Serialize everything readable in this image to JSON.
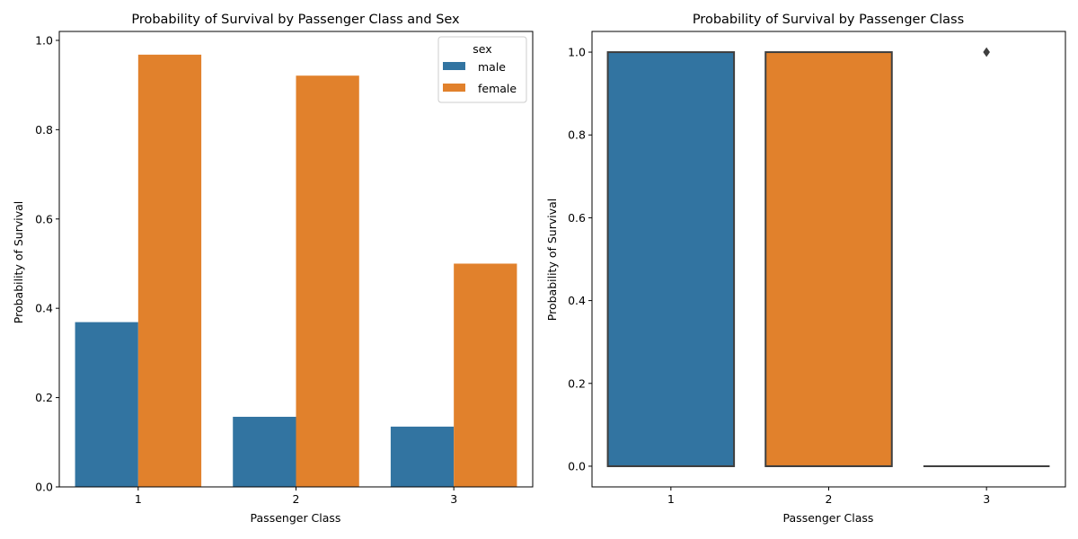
{
  "chart_data": [
    {
      "type": "bar",
      "title": "Probability of Survival by Passenger Class and Sex",
      "xlabel": "Passenger Class",
      "ylabel": "Probability of Survival",
      "categories": [
        "1",
        "2",
        "3"
      ],
      "series": [
        {
          "name": "male",
          "values": [
            0.369,
            0.157,
            0.135
          ]
        },
        {
          "name": "female",
          "values": [
            0.968,
            0.921,
            0.5
          ]
        }
      ],
      "ylim": [
        0,
        1.02
      ],
      "yticks": [
        0.0,
        0.2,
        0.4,
        0.6,
        0.8,
        1.0
      ],
      "ytick_labels": [
        "0.0",
        "0.2",
        "0.4",
        "0.6",
        "0.8",
        "1.0"
      ],
      "legend": {
        "title": "sex",
        "placement": "top-right",
        "entries": [
          "male",
          "female"
        ]
      },
      "grid": false
    },
    {
      "type": "box",
      "title": "Probability of Survival by Passenger Class",
      "xlabel": "Passenger Class",
      "ylabel": "Probability of Survival",
      "categories": [
        "1",
        "2",
        "3"
      ],
      "boxes": [
        {
          "category": "1",
          "q1": 0.0,
          "median": 0.0,
          "q3": 1.0,
          "whisker_low": 0.0,
          "whisker_high": 1.0,
          "outliers": []
        },
        {
          "category": "2",
          "q1": 0.0,
          "median": 0.0,
          "q3": 1.0,
          "whisker_low": 0.0,
          "whisker_high": 1.0,
          "outliers": []
        },
        {
          "category": "3",
          "q1": 0.0,
          "median": 0.0,
          "q3": 0.0,
          "whisker_low": 0.0,
          "whisker_high": 0.0,
          "outliers": [
            1.0
          ]
        }
      ],
      "ylim": [
        -0.05,
        1.05
      ],
      "yticks": [
        0.0,
        0.2,
        0.4,
        0.6,
        0.8,
        1.0
      ],
      "ytick_labels": [
        "0.0",
        "0.2",
        "0.4",
        "0.6",
        "0.8",
        "1.0"
      ],
      "grid": false
    }
  ],
  "colors": {
    "male": "#3274a1",
    "female": "#e1812c",
    "box_class_1": "#3274a1",
    "box_class_2": "#e1812c",
    "box_class_3": "#3a923a",
    "box_edge": "#3f3f3f"
  }
}
